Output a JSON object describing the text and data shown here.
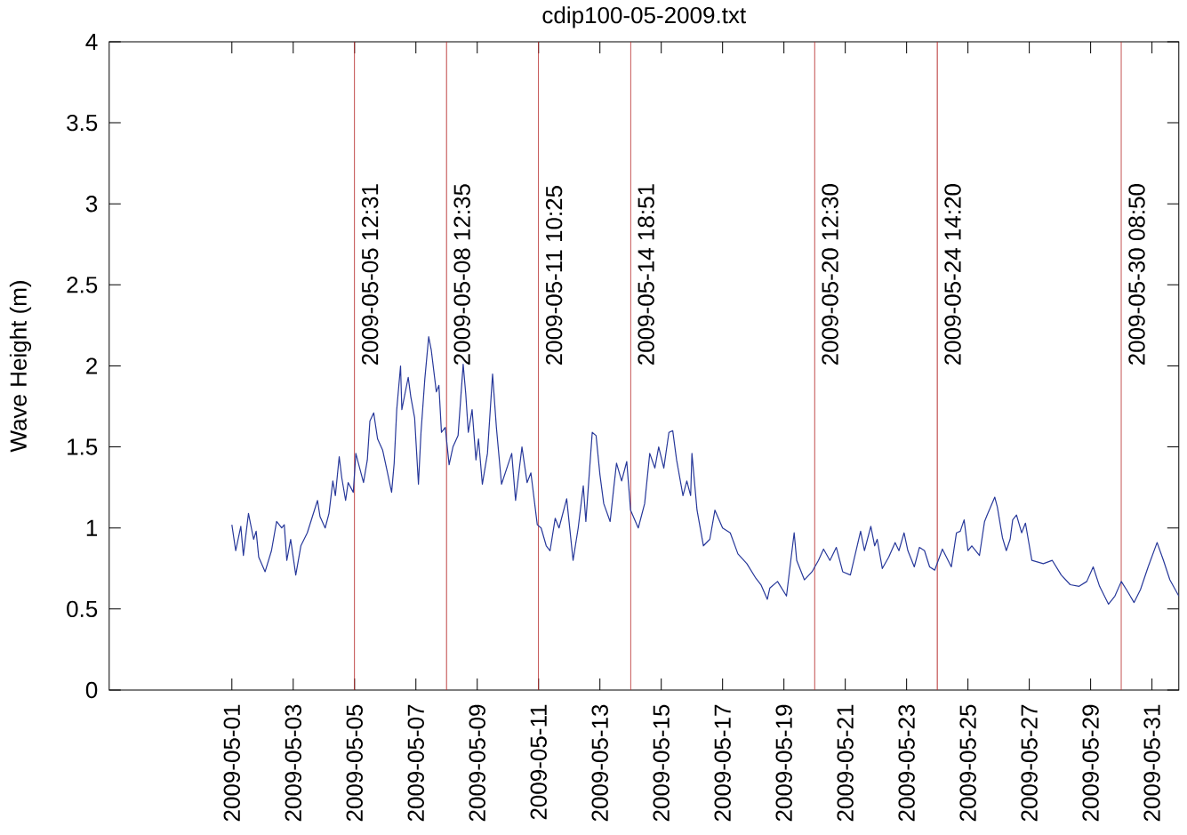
{
  "chart_data": {
    "type": "line",
    "title": "cdip100-05-2009.txt",
    "ylabel": "Wave Height (m)",
    "color": "#27389a",
    "xlim": [
      "2009-04-27",
      "2009-05-31T21:00"
    ],
    "ylim": [
      0,
      4
    ],
    "xticks": [
      "2009-05-01",
      "2009-05-03",
      "2009-05-05",
      "2009-05-07",
      "2009-05-09",
      "2009-05-11",
      "2009-05-13",
      "2009-05-15",
      "2009-05-17",
      "2009-05-19",
      "2009-05-21",
      "2009-05-23",
      "2009-05-25",
      "2009-05-27",
      "2009-05-29",
      "2009-05-31"
    ],
    "yticks": [
      0,
      0.5,
      1,
      1.5,
      2,
      2.5,
      3,
      3.5,
      4
    ],
    "ref_lines": [
      {
        "axis": "x",
        "value": "2009-05-05",
        "label": "2009-05-05 12:31",
        "color": "#b83030"
      },
      {
        "axis": "x",
        "value": "2009-05-08",
        "label": "2009-05-08 12:35",
        "color": "#b83030"
      },
      {
        "axis": "x",
        "value": "2009-05-11",
        "label": "2009-05-11 10:25",
        "color": "#b83030"
      },
      {
        "axis": "x",
        "value": "2009-05-14",
        "label": "2009-05-14 18:51",
        "color": "#b83030"
      },
      {
        "axis": "x",
        "value": "2009-05-20",
        "label": "2009-05-20 12:30",
        "color": "#b83030"
      },
      {
        "axis": "x",
        "value": "2009-05-24",
        "label": "2009-05-24 14:20",
        "color": "#b83030"
      },
      {
        "axis": "x",
        "value": "2009-05-30",
        "label": "2009-05-30 08:50",
        "color": "#b83030"
      }
    ],
    "x": [
      "2009-05-01T00:00",
      "2009-05-01T03:00",
      "2009-05-01T07:00",
      "2009-05-01T09:00",
      "2009-05-01T13:00",
      "2009-05-01T17:00",
      "2009-05-01T19:00",
      "2009-05-01T21:00",
      "2009-05-02T02:00",
      "2009-05-02T07:00",
      "2009-05-02T11:00",
      "2009-05-02T15:00",
      "2009-05-02T17:00",
      "2009-05-02T19:00",
      "2009-05-02T22:00",
      "2009-05-03T02:00",
      "2009-05-03T06:00",
      "2009-05-03T11:00",
      "2009-05-03T15:00",
      "2009-05-03T19:00",
      "2009-05-03T21:00",
      "2009-05-04T01:00",
      "2009-05-04T04:00",
      "2009-05-04T07:00",
      "2009-05-04T09:00",
      "2009-05-04T12:00",
      "2009-05-04T14:00",
      "2009-05-04T17:00",
      "2009-05-04T19:00",
      "2009-05-04T23:00",
      "2009-05-05T01:00",
      "2009-05-05T04:00",
      "2009-05-05T07:00",
      "2009-05-05T10:00",
      "2009-05-05T12:00",
      "2009-05-05T15:00",
      "2009-05-05T18:00",
      "2009-05-05T22:00",
      "2009-05-06T01:00",
      "2009-05-06T05:00",
      "2009-05-06T07:00",
      "2009-05-06T09:00",
      "2009-05-06T12:00",
      "2009-05-06T13:00",
      "2009-05-06T18:00",
      "2009-05-06T20:00",
      "2009-05-06T23:00",
      "2009-05-07T02:00",
      "2009-05-07T04:00",
      "2009-05-07T07:00",
      "2009-05-07T10:00",
      "2009-05-07T12:00",
      "2009-05-07T16:00",
      "2009-05-07T18:00",
      "2009-05-07T20:00",
      "2009-05-07T23:00",
      "2009-05-08T02:00",
      "2009-05-08T05:00",
      "2009-05-08T09:00",
      "2009-05-08T13:00",
      "2009-05-08T15:00",
      "2009-05-08T17:00",
      "2009-05-08T20:00",
      "2009-05-08T23:00",
      "2009-05-09T01:00",
      "2009-05-09T04:00",
      "2009-05-09T08:00",
      "2009-05-09T12:00",
      "2009-05-09T15:00",
      "2009-05-09T19:00",
      "2009-05-10T03:00",
      "2009-05-10T06:00",
      "2009-05-10T11:00",
      "2009-05-10T15:00",
      "2009-05-10T18:00",
      "2009-05-10T23:00",
      "2009-05-11T02:00",
      "2009-05-11T06:00",
      "2009-05-11T09:00",
      "2009-05-11T13:00",
      "2009-05-11T16:00",
      "2009-05-11T22:00",
      "2009-05-12T03:00",
      "2009-05-12T07:00",
      "2009-05-12T11:00",
      "2009-05-12T13:00",
      "2009-05-12T18:00",
      "2009-05-12T21:00",
      "2009-05-13T00:00",
      "2009-05-13T03:00",
      "2009-05-13T08:00",
      "2009-05-13T11:00",
      "2009-05-13T13:00",
      "2009-05-13T17:00",
      "2009-05-13T21:00",
      "2009-05-14T00:00",
      "2009-05-14T06:00",
      "2009-05-14T11:00",
      "2009-05-14T15:00",
      "2009-05-14T19:00",
      "2009-05-14T22:00",
      "2009-05-15T02:00",
      "2009-05-15T06:00",
      "2009-05-15T09:00",
      "2009-05-15T12:00",
      "2009-05-15T17:00",
      "2009-05-15T20:00",
      "2009-05-15T23:00",
      "2009-05-16T00:00",
      "2009-05-16T04:00",
      "2009-05-16T09:00",
      "2009-05-16T14:00",
      "2009-05-16T18:00",
      "2009-05-17T00:00",
      "2009-05-17T06:00",
      "2009-05-17T12:00",
      "2009-05-17T19:00",
      "2009-05-18T02:00",
      "2009-05-18T06:00",
      "2009-05-18T11:00",
      "2009-05-18T13:00",
      "2009-05-18T19:00",
      "2009-05-19T02:00",
      "2009-05-19T08:00",
      "2009-05-19T10:00",
      "2009-05-19T16:00",
      "2009-05-19T22:00",
      "2009-05-20T03:00",
      "2009-05-20T07:00",
      "2009-05-20T12:00",
      "2009-05-20T17:00",
      "2009-05-20T22:00",
      "2009-05-21T04:00",
      "2009-05-21T12:00",
      "2009-05-21T15:00",
      "2009-05-21T20:00",
      "2009-05-21T23:00",
      "2009-05-22T01:00",
      "2009-05-22T05:00",
      "2009-05-22T10:00",
      "2009-05-22T15:00",
      "2009-05-22T18:00",
      "2009-05-22T22:00",
      "2009-05-23T01:00",
      "2009-05-23T06:00",
      "2009-05-23T10:00",
      "2009-05-23T14:00",
      "2009-05-23T18:00",
      "2009-05-23T22:00",
      "2009-05-24T04:00",
      "2009-05-24T11:00",
      "2009-05-24T15:00",
      "2009-05-24T18:00",
      "2009-05-24T21:00",
      "2009-05-25T00:00",
      "2009-05-25T03:00",
      "2009-05-25T09:00",
      "2009-05-25T13:00",
      "2009-05-25T15:00",
      "2009-05-25T21:00",
      "2009-05-25T23:00",
      "2009-05-26T03:00",
      "2009-05-26T06:00",
      "2009-05-26T09:00",
      "2009-05-26T11:00",
      "2009-05-26T14:00",
      "2009-05-26T18:00",
      "2009-05-26T21:00",
      "2009-05-27T02:00",
      "2009-05-27T11:00",
      "2009-05-27T18:00",
      "2009-05-28T01:00",
      "2009-05-28T08:00",
      "2009-05-28T15:00",
      "2009-05-28T21:00",
      "2009-05-29T02:00",
      "2009-05-29T07:00",
      "2009-05-29T14:00",
      "2009-05-29T19:00",
      "2009-05-30T00:00",
      "2009-05-30T04:00",
      "2009-05-30T10:00",
      "2009-05-30T15:00",
      "2009-05-30T21:00",
      "2009-05-31T04:00",
      "2009-05-31T09:00",
      "2009-05-31T14:00",
      "2009-05-31T21:00"
    ],
    "values": [
      1.02,
      0.86,
      1.01,
      0.83,
      1.09,
      0.93,
      0.98,
      0.82,
      0.73,
      0.86,
      1.04,
      1.0,
      1.02,
      0.8,
      0.93,
      0.71,
      0.89,
      0.97,
      1.07,
      1.17,
      1.07,
      1.0,
      1.09,
      1.29,
      1.2,
      1.44,
      1.31,
      1.17,
      1.28,
      1.22,
      1.46,
      1.37,
      1.28,
      1.42,
      1.66,
      1.71,
      1.55,
      1.48,
      1.37,
      1.22,
      1.4,
      1.73,
      2.0,
      1.73,
      1.93,
      1.81,
      1.68,
      1.27,
      1.59,
      1.92,
      2.18,
      2.1,
      1.84,
      1.88,
      1.59,
      1.62,
      1.39,
      1.5,
      1.57,
      2.01,
      1.83,
      1.59,
      1.73,
      1.42,
      1.55,
      1.27,
      1.46,
      1.95,
      1.62,
      1.27,
      1.46,
      1.17,
      1.5,
      1.28,
      1.34,
      1.02,
      1.0,
      0.89,
      0.86,
      1.06,
      1.0,
      1.18,
      0.8,
      1.0,
      1.26,
      1.04,
      1.59,
      1.57,
      1.33,
      1.15,
      1.04,
      1.26,
      1.4,
      1.29,
      1.41,
      1.11,
      1.0,
      1.15,
      1.46,
      1.37,
      1.5,
      1.37,
      1.59,
      1.6,
      1.42,
      1.2,
      1.29,
      1.2,
      1.46,
      1.11,
      0.89,
      0.93,
      1.11,
      1.0,
      0.97,
      0.84,
      0.78,
      0.69,
      0.65,
      0.56,
      0.63,
      0.67,
      0.58,
      0.97,
      0.8,
      0.68,
      0.73,
      0.8,
      0.87,
      0.8,
      0.88,
      0.73,
      0.71,
      0.98,
      0.86,
      1.01,
      0.89,
      0.93,
      0.75,
      0.82,
      0.91,
      0.86,
      0.97,
      0.86,
      0.76,
      0.88,
      0.86,
      0.76,
      0.74,
      0.87,
      0.76,
      0.97,
      0.98,
      1.05,
      0.86,
      0.89,
      0.83,
      1.04,
      1.08,
      1.19,
      1.13,
      0.94,
      0.86,
      0.93,
      1.05,
      1.08,
      0.97,
      1.03,
      0.8,
      0.78,
      0.8,
      0.71,
      0.65,
      0.64,
      0.67,
      0.76,
      0.64,
      0.53,
      0.58,
      0.67,
      0.62,
      0.54,
      0.62,
      0.76,
      0.91,
      0.8,
      0.68,
      0.58
    ]
  }
}
